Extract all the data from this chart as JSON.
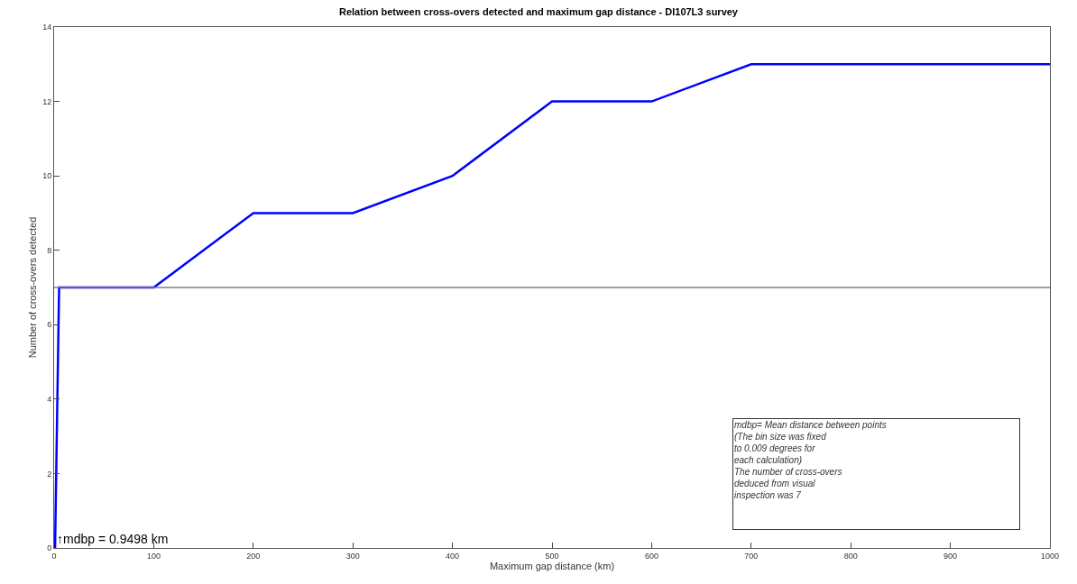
{
  "chart_data": {
    "type": "line",
    "title": "Relation between cross-overs detected and maximum gap distance - DI107L3 survey",
    "xlabel": "Maximum gap distance (km)",
    "ylabel": "Number of cross-overs detected",
    "x": [
      0.9498,
      5,
      100,
      200,
      300,
      400,
      500,
      600,
      700,
      1000
    ],
    "series": [
      {
        "color": "#0000ff",
        "values": [
          0,
          7,
          7,
          9,
          9,
          10,
          12,
          12,
          13,
          13
        ]
      }
    ],
    "xlim": [
      0,
      1000
    ],
    "xticks": [
      0,
      100,
      200,
      300,
      400,
      500,
      600,
      700,
      800,
      900,
      1000
    ],
    "ylim": [
      0,
      14
    ],
    "yticks": [
      0,
      2,
      4,
      6,
      8,
      10,
      12,
      14
    ],
    "ref_lines": [
      {
        "axis": "y",
        "value": 7,
        "color": "#808080"
      }
    ],
    "annotations": [
      {
        "text": "↑mdbp = 0.9498 km",
        "x": 0.9498,
        "y": 0
      },
      "mdbp= Mean distance between points\n(The bin size was fixed\nto 0.009 degrees for\neach calculation)\nThe number of cross-overs\ndeduced from visual\ninspection was 7"
    ],
    "grid": false,
    "marker": "none",
    "line_style": "solid"
  }
}
